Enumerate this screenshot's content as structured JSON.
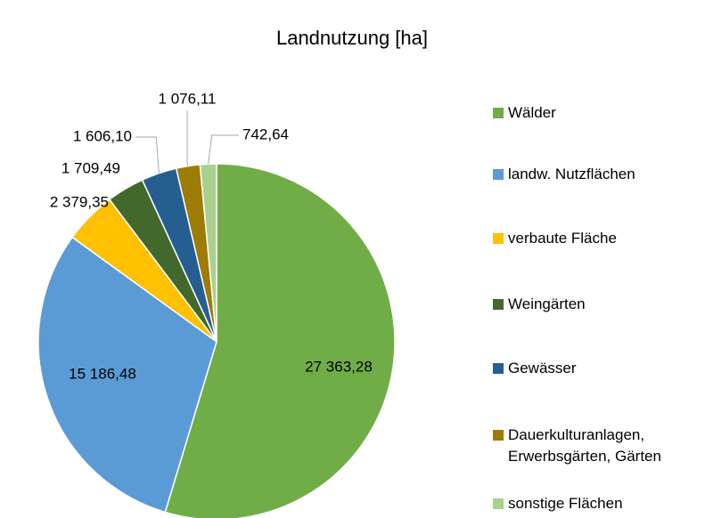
{
  "chart_data": {
    "type": "pie",
    "title": "Landnutzung [ha]",
    "categories": [
      "Wälder",
      "landw. Nutzflächen",
      "verbaute Fläche",
      "Weingärten",
      "Gewässer",
      "Dauerkulturanlagen, Erwerbsgärten, Gärten",
      "sonstige Flächen"
    ],
    "values": [
      27363.28,
      15186.48,
      2379.35,
      1709.49,
      1606.1,
      1076.11,
      742.64
    ],
    "value_labels": [
      "27 363,28",
      "15 186,48",
      "2 379,35",
      "1 709,49",
      "1 606,10",
      "1 076,11",
      "742,64"
    ],
    "colors": [
      "#70ad47",
      "#5b9bd5",
      "#ffc000",
      "#43682b",
      "#255e91",
      "#9e7b04",
      "#a9d18e"
    ],
    "legend": "right"
  }
}
